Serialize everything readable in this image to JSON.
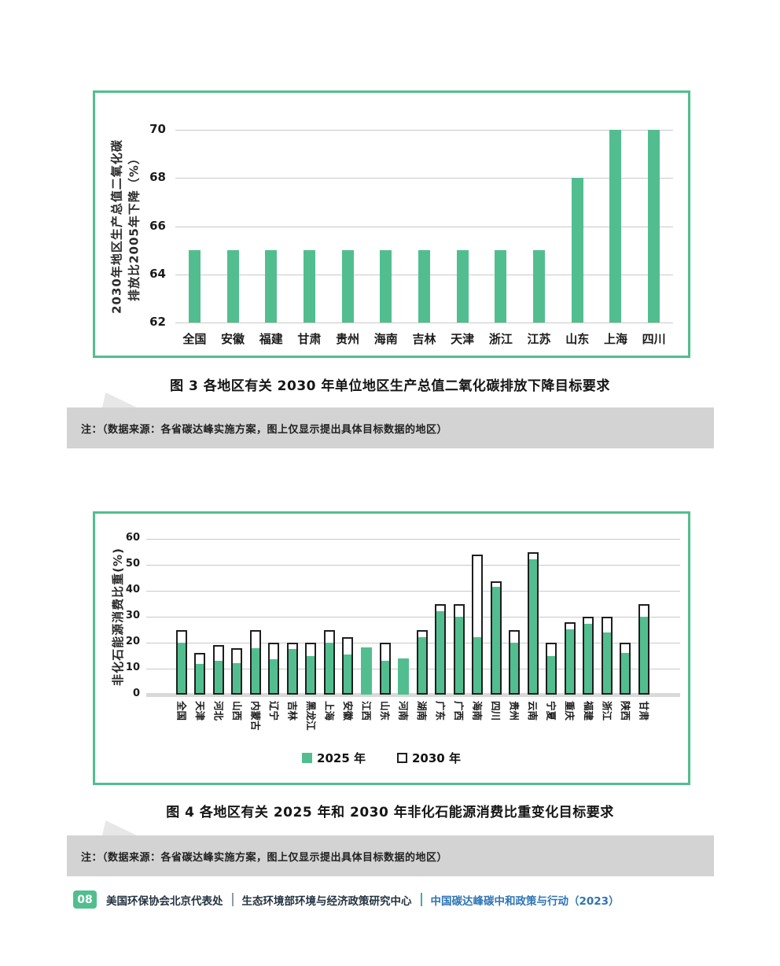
{
  "figures": {
    "fig3_caption": "图 3  各地区有关 2030 年单位地区生产总值二氧化碳排放下降目标要求",
    "fig4_caption": "图 4  各地区有关 2025 年和 2030 年非化石能源消费比重变化目标要求",
    "note_text": "注：（数据来源：各省碳达峰实施方案，图上仅显示提出具体目标数据的地区）"
  },
  "chart_data": [
    {
      "id": "fig3",
      "type": "bar",
      "title": "",
      "ylabel_lines": [
        "2030年地区生产总值二氧化碳",
        "排放比2005年下降（%）"
      ],
      "categories": [
        "全国",
        "安徽",
        "福建",
        "甘肃",
        "贵州",
        "海南",
        "吉林",
        "天津",
        "浙江",
        "江苏",
        "山东",
        "上海",
        "四川"
      ],
      "values": [
        65,
        65,
        65,
        65,
        65,
        65,
        65,
        65,
        65,
        65,
        68,
        70,
        70
      ],
      "ylim": [
        62,
        70
      ],
      "yticks": [
        62,
        64,
        66,
        68,
        70
      ],
      "grid": true,
      "bar_color": "#52BE8F",
      "gridline_color": "#C9C9C9"
    },
    {
      "id": "fig4",
      "type": "bar",
      "title": "",
      "ylabel": "非化石能源消费比重(%)",
      "categories": [
        "全国",
        "天津",
        "河北",
        "山西",
        "内蒙古",
        "辽宁",
        "吉林",
        "黑龙江",
        "上海",
        "安徽",
        "江西",
        "山东",
        "河南",
        "湖南",
        "广东",
        "广西",
        "海南",
        "四川",
        "贵州",
        "云南",
        "宁夏",
        "重庆",
        "福建",
        "浙江",
        "陕西",
        "甘肃"
      ],
      "series": [
        {
          "name": "2025 年",
          "style": "solid",
          "color": "#52BE8F",
          "values": [
            20,
            11.7,
            13,
            12,
            18,
            13.5,
            17.7,
            15,
            20,
            15.5,
            18.3,
            13,
            14,
            22,
            32,
            30,
            22,
            41.5,
            20,
            52,
            15,
            25,
            27.4,
            24,
            16,
            30
          ]
        },
        {
          "name": "2030 年",
          "style": "outline",
          "color": "#FFFFFF",
          "border_color": "#1F1F1F",
          "values": [
            25,
            16,
            19,
            18,
            25,
            20,
            20,
            20,
            25,
            22,
            null,
            20,
            null,
            25,
            35,
            35,
            54,
            43.5,
            25,
            55,
            20,
            28,
            30,
            30,
            20,
            35
          ]
        }
      ],
      "ylim": [
        0,
        60
      ],
      "yticks": [
        0,
        10,
        20,
        30,
        40,
        50,
        60
      ],
      "grid": true,
      "legend_position": "bottom",
      "gridline_color": "#C9C9C9",
      "baseline_color": "#D9D9D9"
    }
  ],
  "footer": {
    "page_number": "08",
    "org1": "美国环保协会北京代表处",
    "org2": "生态环境部环境与经济政策研究中心",
    "report": "中国碳达峰碳中和政策与行动（2023）"
  },
  "colors": {
    "accent_green": "#52BE8F",
    "box_border": "#52BE8F",
    "note_background": "#D3D3D3",
    "footer_blue": "#2E74B5",
    "footer_teal_divider": "#3FAE9C",
    "bar_outline_black": "#1F1F1F"
  }
}
